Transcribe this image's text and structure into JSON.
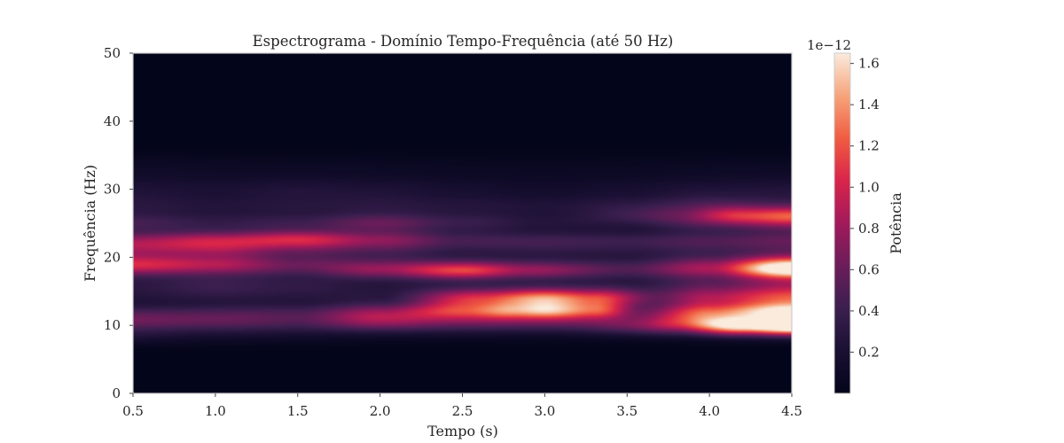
{
  "chart_data": {
    "type": "heatmap",
    "title": "Espectrograma - Domínio Tempo-Frequência (até 50 Hz)",
    "xlabel": "Tempo (s)",
    "ylabel": "Frequência (Hz)",
    "xlim": [
      0.5,
      4.5
    ],
    "ylim": [
      0,
      50
    ],
    "xticks": [
      "0.5",
      "1.0",
      "1.5",
      "2.0",
      "2.5",
      "3.0",
      "3.5",
      "4.0",
      "4.5"
    ],
    "yticks": [
      "0",
      "10",
      "20",
      "30",
      "40",
      "50"
    ],
    "grid": false,
    "colormap": "rocket",
    "colorbar": {
      "label": "Potência",
      "offset_text": "1e−12",
      "ticks": [
        "0.2",
        "0.4",
        "0.6",
        "0.8",
        "1.0",
        "1.2",
        "1.4",
        "1.6"
      ],
      "min": 0,
      "max": 1.65
    },
    "z_unit_scale": "1e-12",
    "bands": [
      {
        "freq": 8.5,
        "width": 1.0,
        "points": [
          [
            0.5,
            0.18
          ],
          [
            1.0,
            0.12
          ],
          [
            1.5,
            0.1
          ],
          [
            2.0,
            0.06
          ],
          [
            3.0,
            0.05
          ],
          [
            4.0,
            0.05
          ],
          [
            4.5,
            0.05
          ]
        ]
      },
      {
        "freq": 9.8,
        "width": 0.9,
        "points": [
          [
            0.5,
            0.05
          ],
          [
            1.5,
            0.08
          ],
          [
            3.0,
            0.1
          ],
          [
            3.8,
            0.45
          ],
          [
            4.2,
            1.2
          ],
          [
            4.5,
            1.62
          ]
        ]
      },
      {
        "freq": 10.8,
        "width": 1.1,
        "points": [
          [
            0.5,
            0.55
          ],
          [
            1.0,
            0.5
          ],
          [
            1.5,
            0.42
          ],
          [
            2.0,
            0.72
          ],
          [
            2.5,
            0.55
          ],
          [
            3.0,
            0.5
          ],
          [
            3.5,
            0.4
          ],
          [
            4.0,
            0.9
          ],
          [
            4.5,
            0.75
          ]
        ]
      },
      {
        "freq": 12.2,
        "width": 0.9,
        "points": [
          [
            0.5,
            0.15
          ],
          [
            1.5,
            0.22
          ],
          [
            2.0,
            0.4
          ],
          [
            2.5,
            0.8
          ],
          [
            2.8,
            1.05
          ],
          [
            3.0,
            1.15
          ],
          [
            3.3,
            0.9
          ],
          [
            3.6,
            0.3
          ],
          [
            4.0,
            0.7
          ],
          [
            4.5,
            1.25
          ]
        ]
      },
      {
        "freq": 14.0,
        "width": 1.0,
        "points": [
          [
            0.5,
            0.1
          ],
          [
            1.5,
            0.1
          ],
          [
            2.0,
            0.15
          ],
          [
            2.6,
            0.9
          ],
          [
            3.0,
            1.25
          ],
          [
            3.3,
            1.0
          ],
          [
            3.7,
            0.4
          ],
          [
            4.0,
            0.6
          ],
          [
            4.5,
            0.8
          ]
        ]
      },
      {
        "freq": 15.8,
        "width": 1.4,
        "points": [
          [
            0.5,
            0.28
          ],
          [
            1.0,
            0.38
          ],
          [
            1.5,
            0.32
          ],
          [
            2.0,
            0.22
          ],
          [
            2.5,
            0.2
          ],
          [
            3.0,
            0.2
          ],
          [
            3.5,
            0.22
          ],
          [
            4.0,
            0.45
          ],
          [
            4.5,
            0.65
          ]
        ]
      },
      {
        "freq": 18.0,
        "width": 0.9,
        "points": [
          [
            0.5,
            0.2
          ],
          [
            1.5,
            0.15
          ],
          [
            2.0,
            0.5
          ],
          [
            2.5,
            0.95
          ],
          [
            2.9,
            0.6
          ],
          [
            3.5,
            0.3
          ],
          [
            4.0,
            0.4
          ],
          [
            4.5,
            1.05
          ]
        ]
      },
      {
        "freq": 19.0,
        "width": 1.0,
        "points": [
          [
            0.5,
            0.85
          ],
          [
            1.0,
            0.7
          ],
          [
            1.5,
            0.45
          ],
          [
            2.0,
            0.35
          ],
          [
            2.5,
            0.25
          ],
          [
            3.0,
            0.22
          ],
          [
            3.5,
            0.22
          ],
          [
            4.0,
            0.5
          ],
          [
            4.5,
            1.1
          ]
        ]
      },
      {
        "freq": 21.5,
        "width": 1.2,
        "points": [
          [
            0.5,
            0.75
          ],
          [
            1.0,
            0.8
          ],
          [
            1.5,
            0.55
          ],
          [
            2.0,
            0.45
          ],
          [
            2.5,
            0.3
          ],
          [
            3.0,
            0.32
          ],
          [
            3.5,
            0.3
          ],
          [
            4.0,
            0.35
          ],
          [
            4.5,
            0.4
          ]
        ]
      },
      {
        "freq": 22.8,
        "width": 0.9,
        "points": [
          [
            0.5,
            0.3
          ],
          [
            1.0,
            0.45
          ],
          [
            1.5,
            0.7
          ],
          [
            2.0,
            0.45
          ],
          [
            2.5,
            0.25
          ],
          [
            3.0,
            0.22
          ],
          [
            3.5,
            0.2
          ],
          [
            4.0,
            0.25
          ],
          [
            4.5,
            0.3
          ]
        ]
      },
      {
        "freq": 25.0,
        "width": 1.0,
        "points": [
          [
            0.5,
            0.4
          ],
          [
            1.0,
            0.3
          ],
          [
            1.5,
            0.35
          ],
          [
            2.0,
            0.55
          ],
          [
            2.5,
            0.35
          ],
          [
            3.0,
            0.22
          ],
          [
            3.5,
            0.2
          ],
          [
            4.0,
            0.4
          ],
          [
            4.5,
            0.55
          ]
        ]
      },
      {
        "freq": 26.2,
        "width": 0.9,
        "points": [
          [
            0.5,
            0.05
          ],
          [
            3.0,
            0.05
          ],
          [
            3.8,
            0.3
          ],
          [
            4.2,
            0.75
          ],
          [
            4.5,
            0.85
          ]
        ]
      },
      {
        "freq": 27.6,
        "width": 1.1,
        "points": [
          [
            0.5,
            0.25
          ],
          [
            1.0,
            0.2
          ],
          [
            1.5,
            0.22
          ],
          [
            2.0,
            0.25
          ],
          [
            2.5,
            0.22
          ],
          [
            3.0,
            0.2
          ],
          [
            3.5,
            0.25
          ],
          [
            4.0,
            0.38
          ],
          [
            4.5,
            0.3
          ]
        ]
      },
      {
        "freq": 30.0,
        "width": 1.3,
        "points": [
          [
            0.5,
            0.2
          ],
          [
            1.0,
            0.18
          ],
          [
            1.5,
            0.22
          ],
          [
            2.0,
            0.2
          ],
          [
            2.5,
            0.15
          ],
          [
            3.0,
            0.12
          ],
          [
            3.5,
            0.15
          ],
          [
            4.0,
            0.2
          ],
          [
            4.5,
            0.22
          ]
        ]
      },
      {
        "freq": 33.0,
        "width": 1.5,
        "points": [
          [
            0.5,
            0.1
          ],
          [
            1.5,
            0.08
          ],
          [
            3.0,
            0.06
          ],
          [
            4.5,
            0.08
          ]
        ]
      }
    ]
  }
}
